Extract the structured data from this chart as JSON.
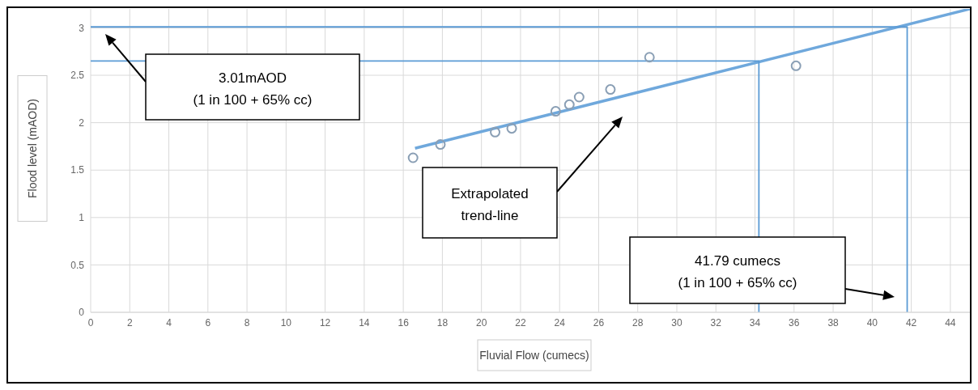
{
  "chart_data": {
    "type": "scatter",
    "xlabel": "Fluvial Flow (cumecs)",
    "ylabel": "Flood level (mAOD)",
    "xlim": [
      0,
      45
    ],
    "ylim": [
      0,
      3.2
    ],
    "xticks": [
      0,
      2,
      4,
      6,
      8,
      10,
      12,
      14,
      16,
      18,
      20,
      22,
      24,
      26,
      28,
      30,
      32,
      34,
      36,
      38,
      40,
      42,
      44
    ],
    "yticks": [
      0,
      0.5,
      1,
      1.5,
      2,
      2.5,
      3
    ],
    "grid": true,
    "series": [
      {
        "marker": "circle",
        "color": "#8a9fb5",
        "x": [
          16.5,
          17.9,
          20.7,
          21.55,
          23.8,
          24.5,
          25.0,
          26.6,
          28.6,
          36.1
        ],
        "values": [
          1.63,
          1.77,
          1.9,
          1.94,
          2.12,
          2.19,
          2.27,
          2.35,
          2.69,
          2.6
        ]
      },
      {
        "type": "line",
        "color": "#6fa8dc",
        "x": [
          16.6,
          45
        ],
        "values": [
          1.73,
          3.2
        ]
      },
      {
        "type": "line",
        "color": "#5b9bd5",
        "x": [
          0,
          34.2,
          34.2
        ],
        "values": [
          2.65,
          2.65,
          0
        ]
      },
      {
        "type": "line",
        "color": "#5b9bd5",
        "x": [
          0,
          41.79,
          41.79
        ],
        "values": [
          3.01,
          3.01,
          0
        ]
      }
    ],
    "annotations": [
      "3.01mAOD\n(1 in 100 + 65% cc)",
      "Extrapolated\ntrend-line",
      "41.79 cumecs\n(1 in 100 + 65% cc)"
    ]
  }
}
